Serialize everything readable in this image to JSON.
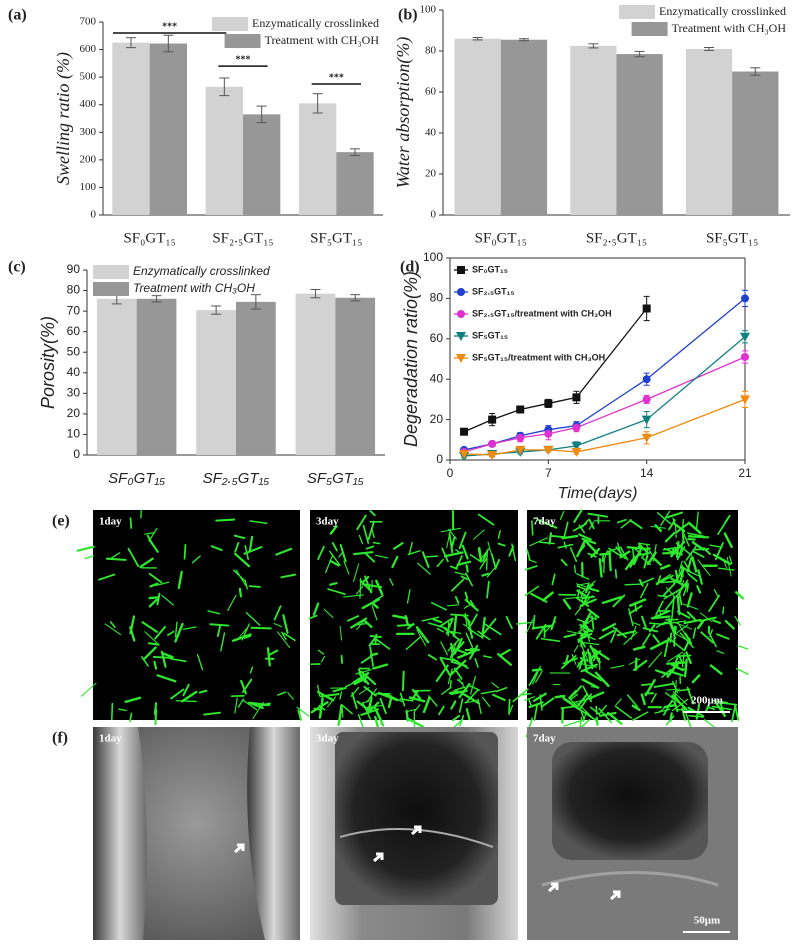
{
  "chart_data": [
    {
      "type": "bar",
      "panel_label": "(a)",
      "ylabel": "Swelling ratio (%)",
      "font": "serif",
      "category_style": "normal",
      "legend": "upper right",
      "categories": [
        "SF₀GT₁₅",
        "SF₂.₅GT₁₅",
        "SF₅GT₁₅"
      ],
      "series": [
        {
          "name": "Enzymatically crosslinked",
          "color": "#d2d2d2",
          "values": [
            625,
            465,
            405
          ],
          "errors": [
            18,
            32,
            35
          ]
        },
        {
          "name": "Treatment with CH₃OH",
          "color": "#979797",
          "values": [
            622,
            365,
            228
          ],
          "errors": [
            30,
            30,
            12
          ]
        }
      ],
      "ylim": [
        0,
        700
      ],
      "yticks": [
        0,
        100,
        200,
        300,
        400,
        500,
        600,
        700
      ],
      "significance": [
        "***",
        "***",
        "***"
      ]
    },
    {
      "type": "bar",
      "panel_label": "(b)",
      "ylabel": "Water absorption(%)",
      "font": "serif",
      "category_style": "normal",
      "legend": "upper right",
      "categories": [
        "SF₀GT₁₅",
        "SF₂.₅GT₁₅",
        "SF₅GT₁₅"
      ],
      "series": [
        {
          "name": "Enzymatically crosslinked",
          "color": "#d2d2d2",
          "values": [
            86,
            82.5,
            81
          ],
          "errors": [
            0.6,
            1,
            0.7
          ]
        },
        {
          "name": "Treatment with CH₃OH",
          "color": "#979797",
          "values": [
            85.5,
            78.5,
            70
          ],
          "errors": [
            0.5,
            1.3,
            1.8
          ]
        }
      ],
      "ylim": [
        0,
        100
      ],
      "yticks": [
        0,
        20,
        40,
        60,
        80,
        100
      ]
    },
    {
      "type": "bar",
      "panel_label": "(c)",
      "ylabel": "Porosity(%)",
      "font": "sans-serif",
      "category_style": "italic",
      "legend": "upper left",
      "categories": [
        "SF₀GT₁₅",
        "SF₂.₅GT₁₅",
        "SF₅GT₁₅"
      ],
      "series": [
        {
          "name": "Enzymatically crosslinked",
          "color": "#d2d2d2",
          "values": [
            76,
            70.5,
            78.5
          ],
          "errors": [
            2.5,
            2,
            2
          ]
        },
        {
          "name": "Treatment with CH₃OH",
          "color": "#979797",
          "values": [
            76,
            74.5,
            76.5
          ],
          "errors": [
            1.5,
            3.5,
            1.5
          ]
        }
      ],
      "ylim": [
        0,
        90
      ],
      "yticks": [
        0,
        10,
        20,
        30,
        40,
        50,
        60,
        70,
        80,
        90
      ]
    },
    {
      "type": "line",
      "panel_label": "(d)",
      "ylabel": "Degeradation ratio(%)",
      "xlabel": "Time(days)",
      "font": "sans-serif",
      "legend": "upper left",
      "xlim": [
        0,
        21
      ],
      "xticks": [
        0,
        7,
        14,
        21
      ],
      "ylim": [
        0,
        100
      ],
      "yticks": [
        0,
        20,
        40,
        60,
        80,
        100
      ],
      "series": [
        {
          "name": "SF₀GT₁₅",
          "color": "#111111",
          "marker": "square",
          "x": [
            1,
            3,
            5,
            7,
            9,
            14
          ],
          "values": [
            14,
            20,
            25,
            28,
            31,
            75
          ],
          "errors": [
            1,
            3,
            1.5,
            2,
            3,
            6
          ]
        },
        {
          "name": "SF₂.₅GT₁₅",
          "color": "#1f3fd0",
          "marker": "circle",
          "x": [
            1,
            3,
            5,
            7,
            9,
            14,
            21
          ],
          "values": [
            5,
            8,
            12,
            15,
            17,
            40,
            80
          ],
          "errors": [
            1,
            1,
            1.5,
            2,
            2,
            3,
            4
          ]
        },
        {
          "name": "SF₂.₅GT₁₅/treatment with CH₃OH",
          "color": "#e030d0",
          "marker": "circle",
          "x": [
            1,
            3,
            5,
            7,
            9,
            14,
            21
          ],
          "values": [
            4,
            8,
            11,
            13,
            16,
            30,
            51
          ],
          "errors": [
            1,
            1,
            2,
            3,
            2,
            2,
            3
          ]
        },
        {
          "name": "SF₅GT₁₅",
          "color": "#107f80",
          "marker": "triangle-down",
          "x": [
            1,
            3,
            5,
            7,
            9,
            14,
            21
          ],
          "values": [
            2,
            3,
            4,
            5,
            7,
            20,
            61
          ],
          "errors": [
            1,
            1,
            1,
            1,
            2,
            4,
            3
          ]
        },
        {
          "name": "SF₅GT₁₅/treatment with CH₃OH",
          "color": "#f08a10",
          "marker": "triangle-down",
          "x": [
            1,
            3,
            5,
            7,
            9,
            14,
            21
          ],
          "values": [
            3,
            2.5,
            5,
            5,
            4,
            11,
            30
          ],
          "errors": [
            1,
            1,
            1,
            1,
            1,
            3,
            4
          ]
        }
      ]
    }
  ],
  "micrographs": [
    {
      "panel_label": "(e)",
      "kind": "fluorescence",
      "images": [
        "1day",
        "3day",
        "7day"
      ],
      "scale_bar": "200μm"
    },
    {
      "panel_label": "(f)",
      "kind": "sem",
      "images": [
        "1day",
        "3day",
        "7day"
      ],
      "scale_bar": "50μm"
    }
  ]
}
